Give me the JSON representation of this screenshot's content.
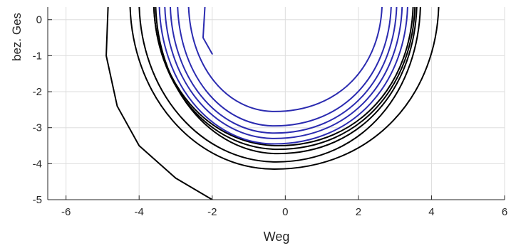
{
  "colors": {
    "background": "#ffffff",
    "top_strip": "#e9d3ea",
    "axes": "#262626",
    "grid": "#dddddd",
    "series_black": "#000000",
    "series_blue": "#2b2bb0"
  },
  "chart_data": {
    "type": "line",
    "title": "",
    "xlabel": "Weg",
    "ylabel": "bez. Ges",
    "xlim": [
      -6.5,
      6.0
    ],
    "ylim": [
      -5.0,
      0.35
    ],
    "xticks": [
      -6,
      -4,
      -2,
      0,
      2,
      4,
      6
    ],
    "yticks": [
      0,
      -1,
      -2,
      -3,
      -4,
      -5
    ],
    "xtick_labels": [
      "-6",
      "-4",
      "-2",
      "0",
      "2",
      "4",
      "6"
    ],
    "ytick_labels": [
      "0",
      "-1",
      "-2",
      "-3",
      "-4",
      "-5"
    ],
    "grid": true,
    "legend": "none",
    "series": [
      {
        "color": "black",
        "description_values": "outer spiral from (-2,-5) winding inward",
        "x": [
          -2.0,
          -3.0,
          -4.0,
          -4.6,
          -4.9,
          -4.85
        ],
        "y": [
          -5.0,
          -4.4,
          -3.5,
          -2.4,
          -1.0,
          0.35
        ]
      },
      {
        "color": "black",
        "loops": [
          {
            "cx": -0.3,
            "cy": -0.05,
            "rx_left": 3.95,
            "rx_right": 4.5,
            "bottom": -4.15
          },
          {
            "cx": -0.25,
            "cy": -0.05,
            "rx_left": 3.75,
            "rx_right": 3.95,
            "bottom": -3.95
          },
          {
            "cx": -0.2,
            "cy": -0.05,
            "rx_left": 3.35,
            "rx_right": 3.8,
            "bottom": -3.72
          },
          {
            "cx": -0.2,
            "cy": -0.05,
            "rx_left": 3.4,
            "rx_right": 3.75,
            "bottom": -3.6
          },
          {
            "cx": -0.2,
            "cy": -0.05,
            "rx_left": 3.4,
            "rx_right": 3.7,
            "bottom": -3.5
          }
        ]
      },
      {
        "color": "blue",
        "loops": [
          {
            "cx": -0.3,
            "cy": -0.05,
            "rx_left": 3.15,
            "rx_right": 3.65,
            "bottom": -3.45
          },
          {
            "cx": -0.3,
            "cy": -0.05,
            "rx_left": 3.0,
            "rx_right": 3.5,
            "bottom": -3.3
          },
          {
            "cx": -0.3,
            "cy": -0.05,
            "rx_left": 2.85,
            "rx_right": 3.35,
            "bottom": -3.15
          },
          {
            "cx": -0.3,
            "cy": -0.05,
            "rx_left": 2.65,
            "rx_right": 3.2,
            "bottom": -2.95
          },
          {
            "cx": -0.3,
            "cy": -0.05,
            "rx_left": 2.35,
            "rx_right": 2.95,
            "bottom": -2.55
          }
        ],
        "inner_end": {
          "x": [
            -2.2,
            -2.25,
            -2.0
          ],
          "y": [
            0.35,
            -0.5,
            -0.95
          ]
        }
      }
    ]
  }
}
